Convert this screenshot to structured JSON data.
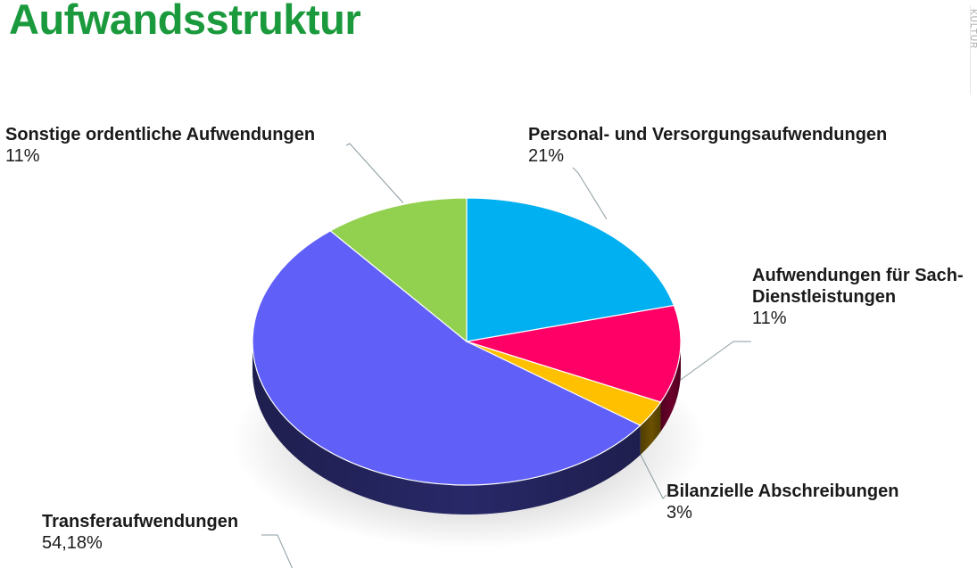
{
  "page": {
    "title": "Aufwandsstruktur",
    "corner_text": "KULTUR"
  },
  "chart_data": {
    "type": "pie",
    "style": "3d",
    "title": "Aufwandsstruktur",
    "legend": "none",
    "slices": [
      {
        "name": "Personal- und Versorgungsaufwendungen",
        "value": 21,
        "label": "21%",
        "color": "#00b0f0"
      },
      {
        "name": "Aufwendungen für Sach- und Dienstleistungen",
        "display_name": "Aufwendungen für Sach- Dienstleistungen",
        "value": 11,
        "label": "11%",
        "color": "#ff0066"
      },
      {
        "name": "Bilanzielle Abschreibungen",
        "value": 3,
        "label": "3%",
        "color": "#ffc000"
      },
      {
        "name": "Transferaufwendungen",
        "value": 54.18,
        "label": "54,18%",
        "color": "#6060f8"
      },
      {
        "name": "Sonstige ordentliche Aufwendungen",
        "value": 11,
        "label": "11%",
        "color": "#92d050"
      }
    ]
  }
}
